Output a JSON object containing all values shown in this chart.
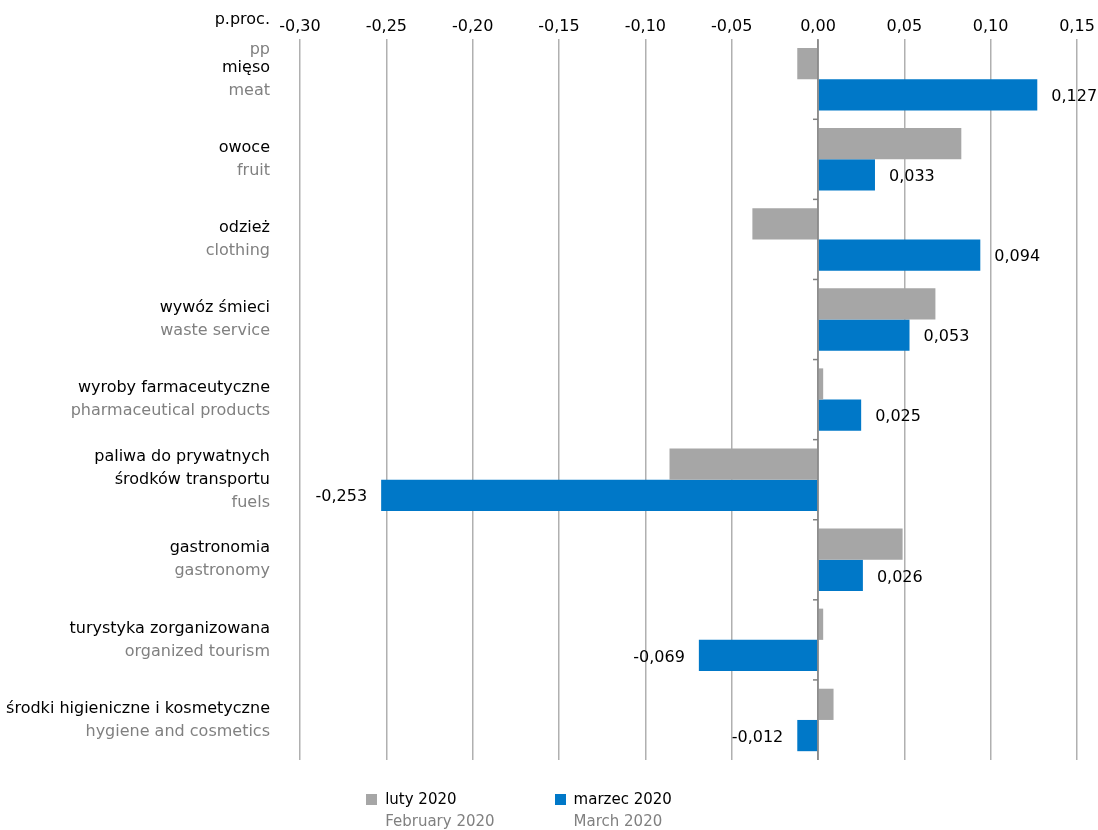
{
  "chart_data": {
    "type": "bar",
    "orientation": "horizontal",
    "xlabel": "p.proc.\npp",
    "categories": [
      "mięso\nmeat",
      "owoce\nfruit",
      "odzież\nclothing",
      "wywóz śmieci\nwaste service",
      "wyroby farmaceutyczne\npharmaceutical products",
      "paliwa do prywatnych\nśrodków transportu\nfuels",
      "gastronomia\ngastronomy",
      "turystyka zorganizowana\norganized tourism",
      "środki higieniczne i kosmetyczne\nhygiene and cosmetics"
    ],
    "series": [
      {
        "name": "luty 2020\nFebruary 2020",
        "color": "#a6a6a6",
        "values": [
          -0.012,
          0.083,
          -0.038,
          0.068,
          0.003,
          -0.086,
          0.049,
          0.003,
          0.009
        ]
      },
      {
        "name": "marzec 2020\nMarch 2020",
        "color": "#0078c8",
        "values": [
          0.127,
          0.033,
          0.094,
          0.053,
          0.025,
          -0.253,
          0.026,
          -0.069,
          -0.012
        ],
        "value_labels": [
          "0,127",
          "0,033",
          "0,094",
          "0,053",
          "0,025",
          "-0,253",
          "0,026",
          "-0,069",
          "-0,012"
        ]
      }
    ],
    "xlim": [
      -0.3,
      0.15
    ],
    "xticks": [
      {
        "value": -0.3,
        "label": "-0,30"
      },
      {
        "value": -0.25,
        "label": "-0,25"
      },
      {
        "value": -0.2,
        "label": "-0,20"
      },
      {
        "value": -0.15,
        "label": "-0,15"
      },
      {
        "value": -0.1,
        "label": "-0,10"
      },
      {
        "value": -0.05,
        "label": "-0,05"
      },
      {
        "value": 0,
        "label": "0,00"
      },
      {
        "value": 0.05,
        "label": "0,05"
      },
      {
        "value": 0.1,
        "label": "0,10"
      },
      {
        "value": 0.15,
        "label": "0,15"
      }
    ],
    "grid": "x",
    "legend": "bottom"
  }
}
